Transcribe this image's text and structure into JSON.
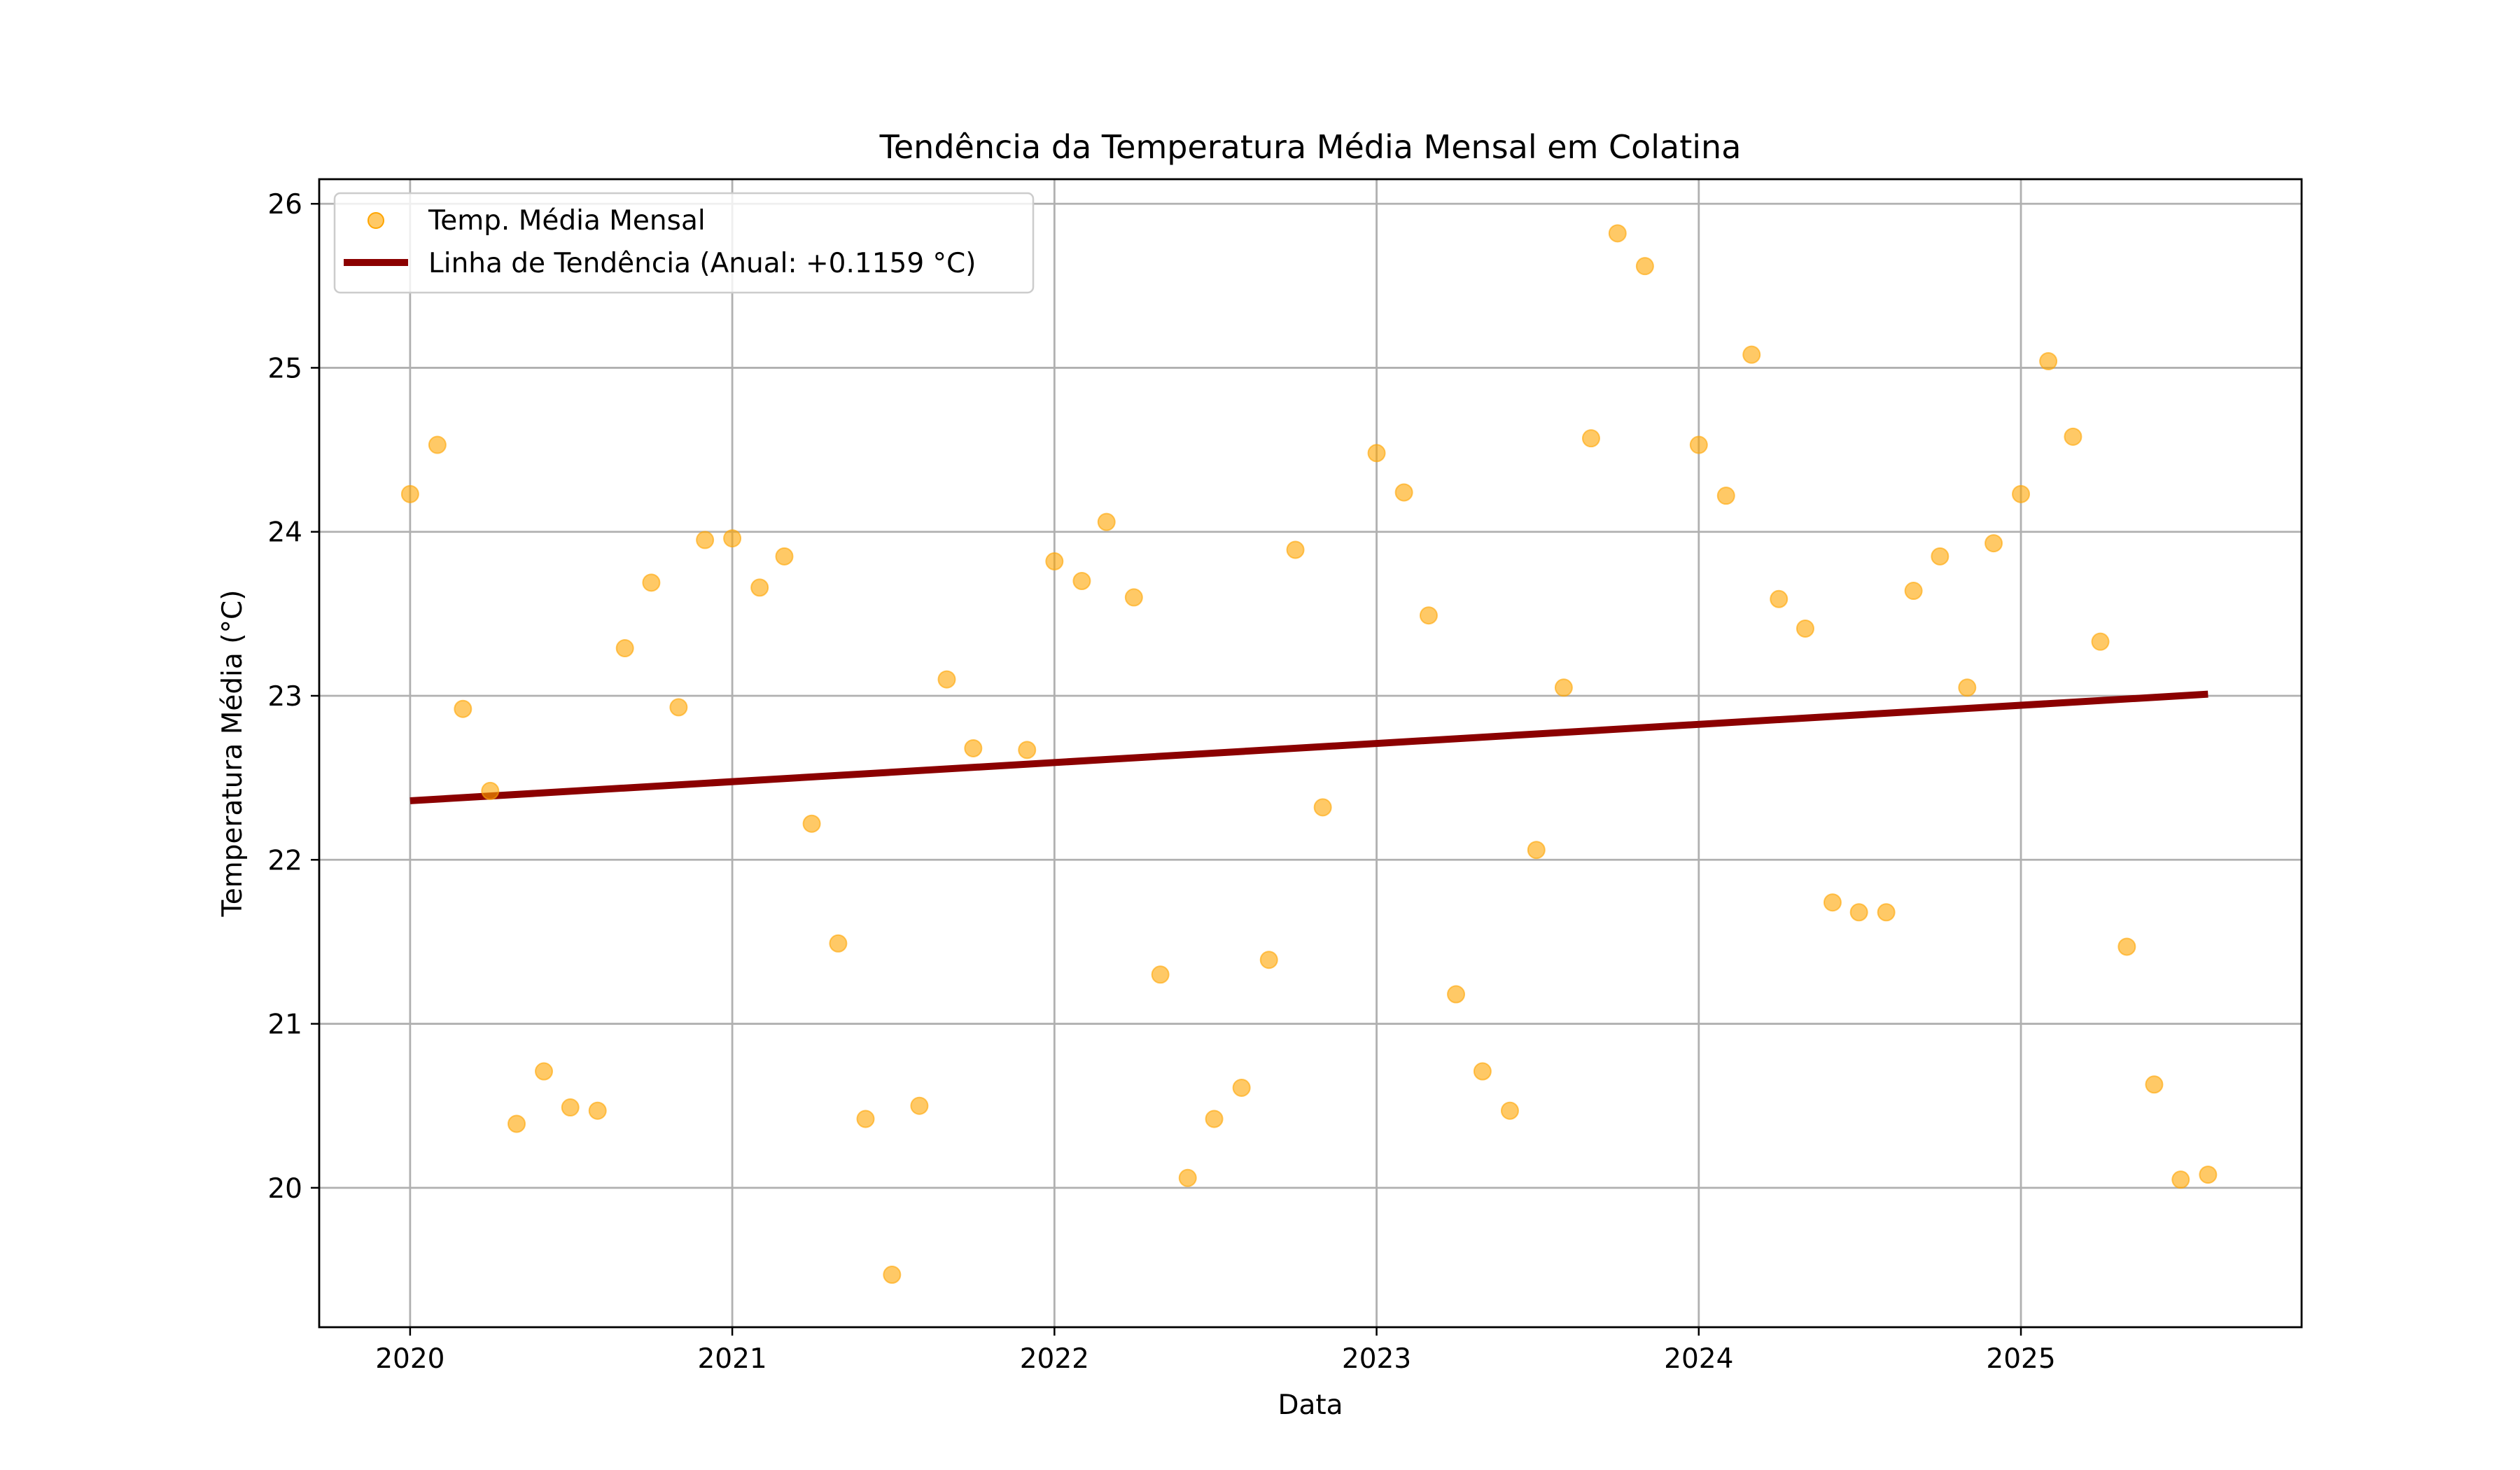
{
  "chart_data": {
    "type": "scatter",
    "title": "Tendência da Temperatura Média Mensal em Colatina",
    "xlabel": "Data",
    "ylabel": "Temperatura Média (°C)",
    "xlim": [
      "2019-09-20",
      "2025-11-15"
    ],
    "ylim": [
      19.15,
      26.15
    ],
    "xticks": [
      "2020",
      "2021",
      "2022",
      "2023",
      "2024",
      "2025"
    ],
    "yticks": [
      "20",
      "21",
      "22",
      "23",
      "24",
      "25",
      "26"
    ],
    "grid": true,
    "legend_position": "top-left",
    "legend": [
      {
        "label": "Temp. Média Mensal",
        "kind": "marker"
      },
      {
        "label": "Linha de Tendência (Anual: +0.1159 °C)",
        "kind": "line"
      }
    ],
    "series": [
      {
        "name": "Temp. Média Mensal",
        "kind": "scatter",
        "color": "#ffa500",
        "x": [
          "2020-01",
          "2020-02",
          "2020-03",
          "2020-04",
          "2020-05",
          "2020-06",
          "2020-07",
          "2020-08",
          "2020-09",
          "2020-10",
          "2020-11",
          "2020-12",
          "2021-01",
          "2021-02",
          "2021-03",
          "2021-04",
          "2021-05",
          "2021-06",
          "2021-07",
          "2021-08",
          "2021-09",
          "2021-10",
          "2021-11",
          "2021-12",
          "2022-01",
          "2022-02",
          "2022-03",
          "2022-04",
          "2022-05",
          "2022-06",
          "2022-07",
          "2022-08",
          "2022-09",
          "2022-10",
          "2022-11",
          "2022-12",
          "2023-01",
          "2023-02",
          "2023-03",
          "2023-04",
          "2023-05",
          "2023-06",
          "2023-07",
          "2023-08",
          "2023-09",
          "2023-10",
          "2023-11",
          "2023-12",
          "2024-01",
          "2024-02",
          "2024-03",
          "2024-04",
          "2024-05",
          "2024-06",
          "2024-07",
          "2024-08",
          "2024-09",
          "2024-10",
          "2024-11",
          "2024-12",
          "2025-01",
          "2025-02",
          "2025-03",
          "2025-04",
          "2025-05",
          "2025-06",
          "2025-07",
          "2025-08"
        ],
        "y": [
          24.23,
          24.53,
          22.92,
          22.42,
          20.39,
          20.71,
          20.49,
          20.47,
          23.29,
          23.69,
          22.93,
          23.95,
          23.96,
          23.66,
          23.85,
          22.22,
          21.49,
          20.42,
          19.47,
          20.5,
          23.1,
          22.68,
          null,
          22.67,
          23.82,
          23.7,
          24.06,
          23.6,
          21.3,
          20.06,
          20.42,
          20.61,
          21.39,
          23.89,
          22.32,
          null,
          24.48,
          24.24,
          23.49,
          21.18,
          20.71,
          20.47,
          22.06,
          23.05,
          24.57,
          25.82,
          25.62,
          null,
          24.53,
          24.22,
          25.08,
          23.59,
          23.41,
          21.74,
          21.68,
          21.68,
          23.64,
          23.85,
          23.05,
          23.93,
          24.23,
          25.04,
          24.58,
          23.33,
          21.47,
          20.63,
          20.05,
          20.08
        ]
      },
      {
        "name": "Linha de Tendência (Anual: +0.1159 °C)",
        "kind": "line",
        "color": "#8b0000",
        "x": [
          "2020-01",
          "2025-08"
        ],
        "y": [
          22.36,
          23.01
        ]
      }
    ]
  }
}
